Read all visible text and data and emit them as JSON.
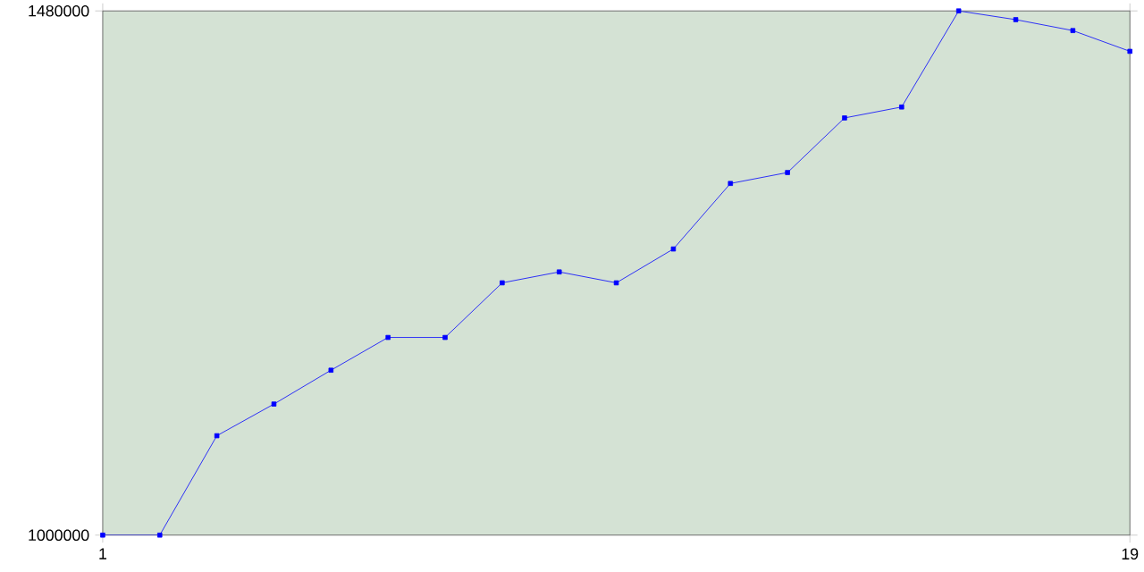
{
  "chart_data": {
    "type": "line",
    "x": [
      1,
      2,
      3,
      4,
      5,
      6,
      7,
      8,
      9,
      10,
      11,
      12,
      13,
      14,
      15,
      16,
      17,
      18,
      19
    ],
    "series": [
      {
        "color": "#0000ff",
        "values": [
          1000000,
          1000000,
          1091000,
          1120000,
          1151000,
          1181000,
          1181000,
          1231000,
          1241000,
          1231000,
          1262000,
          1322000,
          1332000,
          1382000,
          1392000,
          1480000,
          1472000,
          1462000,
          1443000
        ]
      }
    ],
    "xlim": [
      1,
      19
    ],
    "xticks": [
      1,
      19
    ],
    "ylim": [
      1000000,
      1480000
    ],
    "yticks": [
      1000000,
      1480000
    ],
    "grid": false,
    "marker": "square",
    "line_style": "solid"
  }
}
